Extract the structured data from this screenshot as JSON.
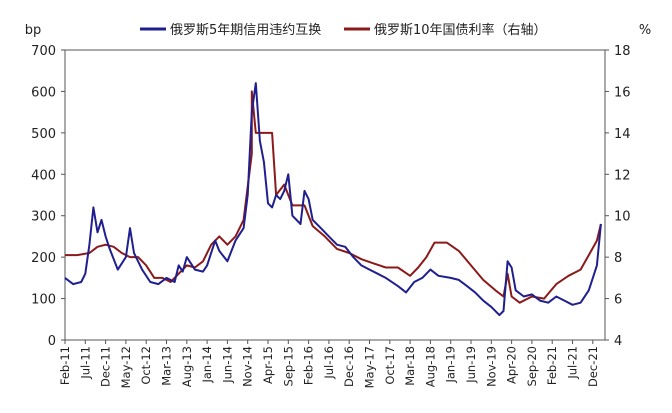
{
  "chart_data": {
    "type": "line",
    "left_unit": "bp",
    "right_unit": "%",
    "y_left": {
      "min": 0,
      "max": 700,
      "ticks": [
        "0",
        "100",
        "200",
        "300",
        "400",
        "500",
        "600",
        "700"
      ]
    },
    "y_right": {
      "min": 4,
      "max": 18,
      "ticks": [
        "4",
        "6",
        "8",
        "10",
        "12",
        "14",
        "16",
        "18"
      ]
    },
    "x_tick_labels": [
      "Feb-11",
      "Jul-11",
      "Dec-11",
      "May-12",
      "Oct-12",
      "Mar-13",
      "Aug-13",
      "Jan-14",
      "Jun-14",
      "Nov-14",
      "Apr-15",
      "Sep-15",
      "Feb-16",
      "Jul-16",
      "Dec-16",
      "May-17",
      "Oct-17",
      "Mar-18",
      "Aug-18",
      "Jan-19",
      "Jun-19",
      "Nov-19",
      "Apr-20",
      "Sep-20",
      "Feb-21",
      "Jul-21",
      "Dec-21"
    ],
    "legend": [
      {
        "name": "俄罗斯5年期信用违约互换",
        "color": "#1f1f8f",
        "axis": "left"
      },
      {
        "name": "俄罗斯10年国债利率（右轴）",
        "color": "#8b1a1a",
        "axis": "right"
      }
    ],
    "series": [
      {
        "name": "俄罗斯5年期信用违约互换",
        "axis": "left",
        "color": "#1f1f8f",
        "points": [
          [
            "2011-02",
            150
          ],
          [
            "2011-04",
            135
          ],
          [
            "2011-06",
            140
          ],
          [
            "2011-07",
            160
          ],
          [
            "2011-08",
            230
          ],
          [
            "2011-09",
            320
          ],
          [
            "2011-10",
            260
          ],
          [
            "2011-11",
            290
          ],
          [
            "2011-12",
            250
          ],
          [
            "2012-01",
            220
          ],
          [
            "2012-03",
            170
          ],
          [
            "2012-05",
            200
          ],
          [
            "2012-06",
            270
          ],
          [
            "2012-07",
            210
          ],
          [
            "2012-09",
            170
          ],
          [
            "2012-11",
            140
          ],
          [
            "2013-01",
            135
          ],
          [
            "2013-03",
            150
          ],
          [
            "2013-05",
            140
          ],
          [
            "2013-06",
            180
          ],
          [
            "2013-07",
            165
          ],
          [
            "2013-08",
            200
          ],
          [
            "2013-10",
            170
          ],
          [
            "2013-12",
            165
          ],
          [
            "2014-01",
            180
          ],
          [
            "2014-03",
            240
          ],
          [
            "2014-04",
            215
          ],
          [
            "2014-06",
            190
          ],
          [
            "2014-08",
            240
          ],
          [
            "2014-10",
            270
          ],
          [
            "2014-11",
            350
          ],
          [
            "2014-12",
            550
          ],
          [
            "2015-01",
            620
          ],
          [
            "2015-02",
            480
          ],
          [
            "2015-03",
            430
          ],
          [
            "2015-04",
            330
          ],
          [
            "2015-05",
            320
          ],
          [
            "2015-06",
            350
          ],
          [
            "2015-07",
            340
          ],
          [
            "2015-08",
            360
          ],
          [
            "2015-09",
            400
          ],
          [
            "2015-10",
            300
          ],
          [
            "2015-12",
            280
          ],
          [
            "2016-01",
            360
          ],
          [
            "2016-02",
            340
          ],
          [
            "2016-03",
            290
          ],
          [
            "2016-05",
            270
          ],
          [
            "2016-07",
            250
          ],
          [
            "2016-09",
            230
          ],
          [
            "2016-11",
            225
          ],
          [
            "2017-01",
            200
          ],
          [
            "2017-03",
            180
          ],
          [
            "2017-05",
            170
          ],
          [
            "2017-07",
            160
          ],
          [
            "2017-09",
            150
          ],
          [
            "2017-12",
            130
          ],
          [
            "2018-02",
            115
          ],
          [
            "2018-04",
            140
          ],
          [
            "2018-06",
            150
          ],
          [
            "2018-08",
            170
          ],
          [
            "2018-10",
            155
          ],
          [
            "2019-01",
            150
          ],
          [
            "2019-03",
            145
          ],
          [
            "2019-05",
            130
          ],
          [
            "2019-07",
            115
          ],
          [
            "2019-09",
            95
          ],
          [
            "2019-11",
            80
          ],
          [
            "2020-01",
            60
          ],
          [
            "2020-02",
            70
          ],
          [
            "2020-03",
            190
          ],
          [
            "2020-04",
            175
          ],
          [
            "2020-05",
            120
          ],
          [
            "2020-07",
            105
          ],
          [
            "2020-09",
            110
          ],
          [
            "2020-11",
            95
          ],
          [
            "2021-01",
            90
          ],
          [
            "2021-03",
            105
          ],
          [
            "2021-05",
            95
          ],
          [
            "2021-07",
            85
          ],
          [
            "2021-09",
            90
          ],
          [
            "2021-11",
            120
          ],
          [
            "2022-01",
            180
          ],
          [
            "2022-02",
            280
          ]
        ]
      },
      {
        "name": "俄罗斯10年国债利率（右轴）",
        "axis": "right",
        "color": "#8b1a1a",
        "points": [
          [
            "2011-02",
            8.1
          ],
          [
            "2011-05",
            8.1
          ],
          [
            "2011-08",
            8.2
          ],
          [
            "2011-10",
            8.5
          ],
          [
            "2011-12",
            8.6
          ],
          [
            "2012-02",
            8.5
          ],
          [
            "2012-04",
            8.2
          ],
          [
            "2012-06",
            8.0
          ],
          [
            "2012-08",
            8.0
          ],
          [
            "2012-10",
            7.6
          ],
          [
            "2012-12",
            7.0
          ],
          [
            "2013-02",
            7.0
          ],
          [
            "2013-04",
            6.8
          ],
          [
            "2013-06",
            7.2
          ],
          [
            "2013-08",
            7.6
          ],
          [
            "2013-10",
            7.5
          ],
          [
            "2013-12",
            7.8
          ],
          [
            "2014-02",
            8.6
          ],
          [
            "2014-04",
            9.0
          ],
          [
            "2014-06",
            8.6
          ],
          [
            "2014-08",
            9.0
          ],
          [
            "2014-10",
            9.8
          ],
          [
            "2014-12",
            13.0
          ],
          [
            "2014-12",
            16.0
          ],
          [
            "2015-01",
            14.0
          ],
          [
            "2015-03",
            14.0
          ],
          [
            "2015-05",
            14.0
          ],
          [
            "2015-06",
            11.0
          ],
          [
            "2015-08",
            11.5
          ],
          [
            "2015-10",
            10.5
          ],
          [
            "2016-01",
            10.5
          ],
          [
            "2016-03",
            9.5
          ],
          [
            "2016-06",
            9.0
          ],
          [
            "2016-09",
            8.4
          ],
          [
            "2016-12",
            8.2
          ],
          [
            "2017-03",
            7.9
          ],
          [
            "2017-06",
            7.7
          ],
          [
            "2017-09",
            7.5
          ],
          [
            "2017-12",
            7.5
          ],
          [
            "2018-03",
            7.1
          ],
          [
            "2018-05",
            7.5
          ],
          [
            "2018-07",
            8.0
          ],
          [
            "2018-09",
            8.7
          ],
          [
            "2018-12",
            8.7
          ],
          [
            "2019-03",
            8.3
          ],
          [
            "2019-06",
            7.6
          ],
          [
            "2019-09",
            6.9
          ],
          [
            "2019-12",
            6.4
          ],
          [
            "2020-02",
            6.1
          ],
          [
            "2020-03",
            7.2
          ],
          [
            "2020-04",
            6.1
          ],
          [
            "2020-06",
            5.8
          ],
          [
            "2020-09",
            6.1
          ],
          [
            "2020-12",
            6.0
          ],
          [
            "2021-03",
            6.7
          ],
          [
            "2021-06",
            7.1
          ],
          [
            "2021-09",
            7.4
          ],
          [
            "2021-11",
            8.1
          ],
          [
            "2022-01",
            8.8
          ],
          [
            "2022-02",
            9.6
          ]
        ]
      }
    ]
  }
}
